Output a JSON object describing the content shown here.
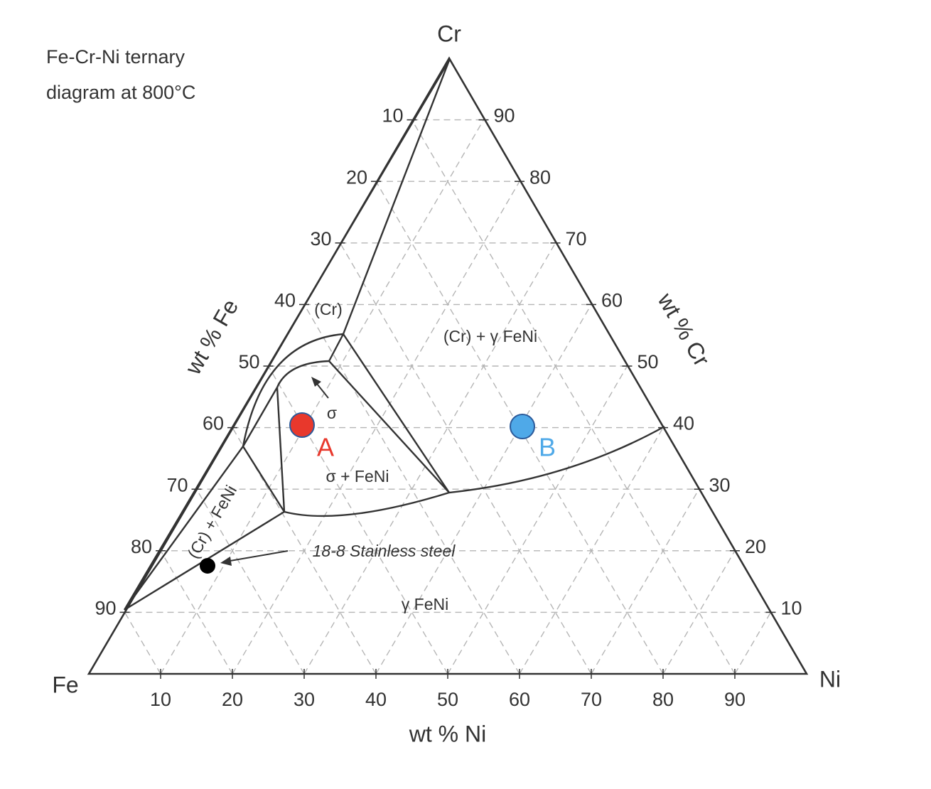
{
  "title": [
    "Fe-Cr-Ni ternary",
    "diagram at 800°C"
  ],
  "vertices": {
    "top": "Cr",
    "left": "Fe",
    "right": "Ni"
  },
  "axes": {
    "left": {
      "label": "wt % Fe",
      "ticks": [
        10,
        20,
        30,
        40,
        50,
        60,
        70,
        80,
        90
      ]
    },
    "right": {
      "label": "wt % Cr",
      "ticks": [
        90,
        80,
        70,
        60,
        50,
        40,
        30,
        20,
        10
      ]
    },
    "bottom": {
      "label": "wt % Ni",
      "ticks": [
        10,
        20,
        30,
        40,
        50,
        60,
        70,
        80,
        90
      ]
    }
  },
  "regions": [
    "(Cr)",
    "(Cr)  + γ FeNi",
    "σ",
    "σ + FeNi",
    "(Cr)  + FeNi",
    "γ FeNi"
  ],
  "annotation": "18-8 Stainless steel",
  "points": [
    {
      "label": "A"
    },
    {
      "label": "B"
    }
  ]
}
